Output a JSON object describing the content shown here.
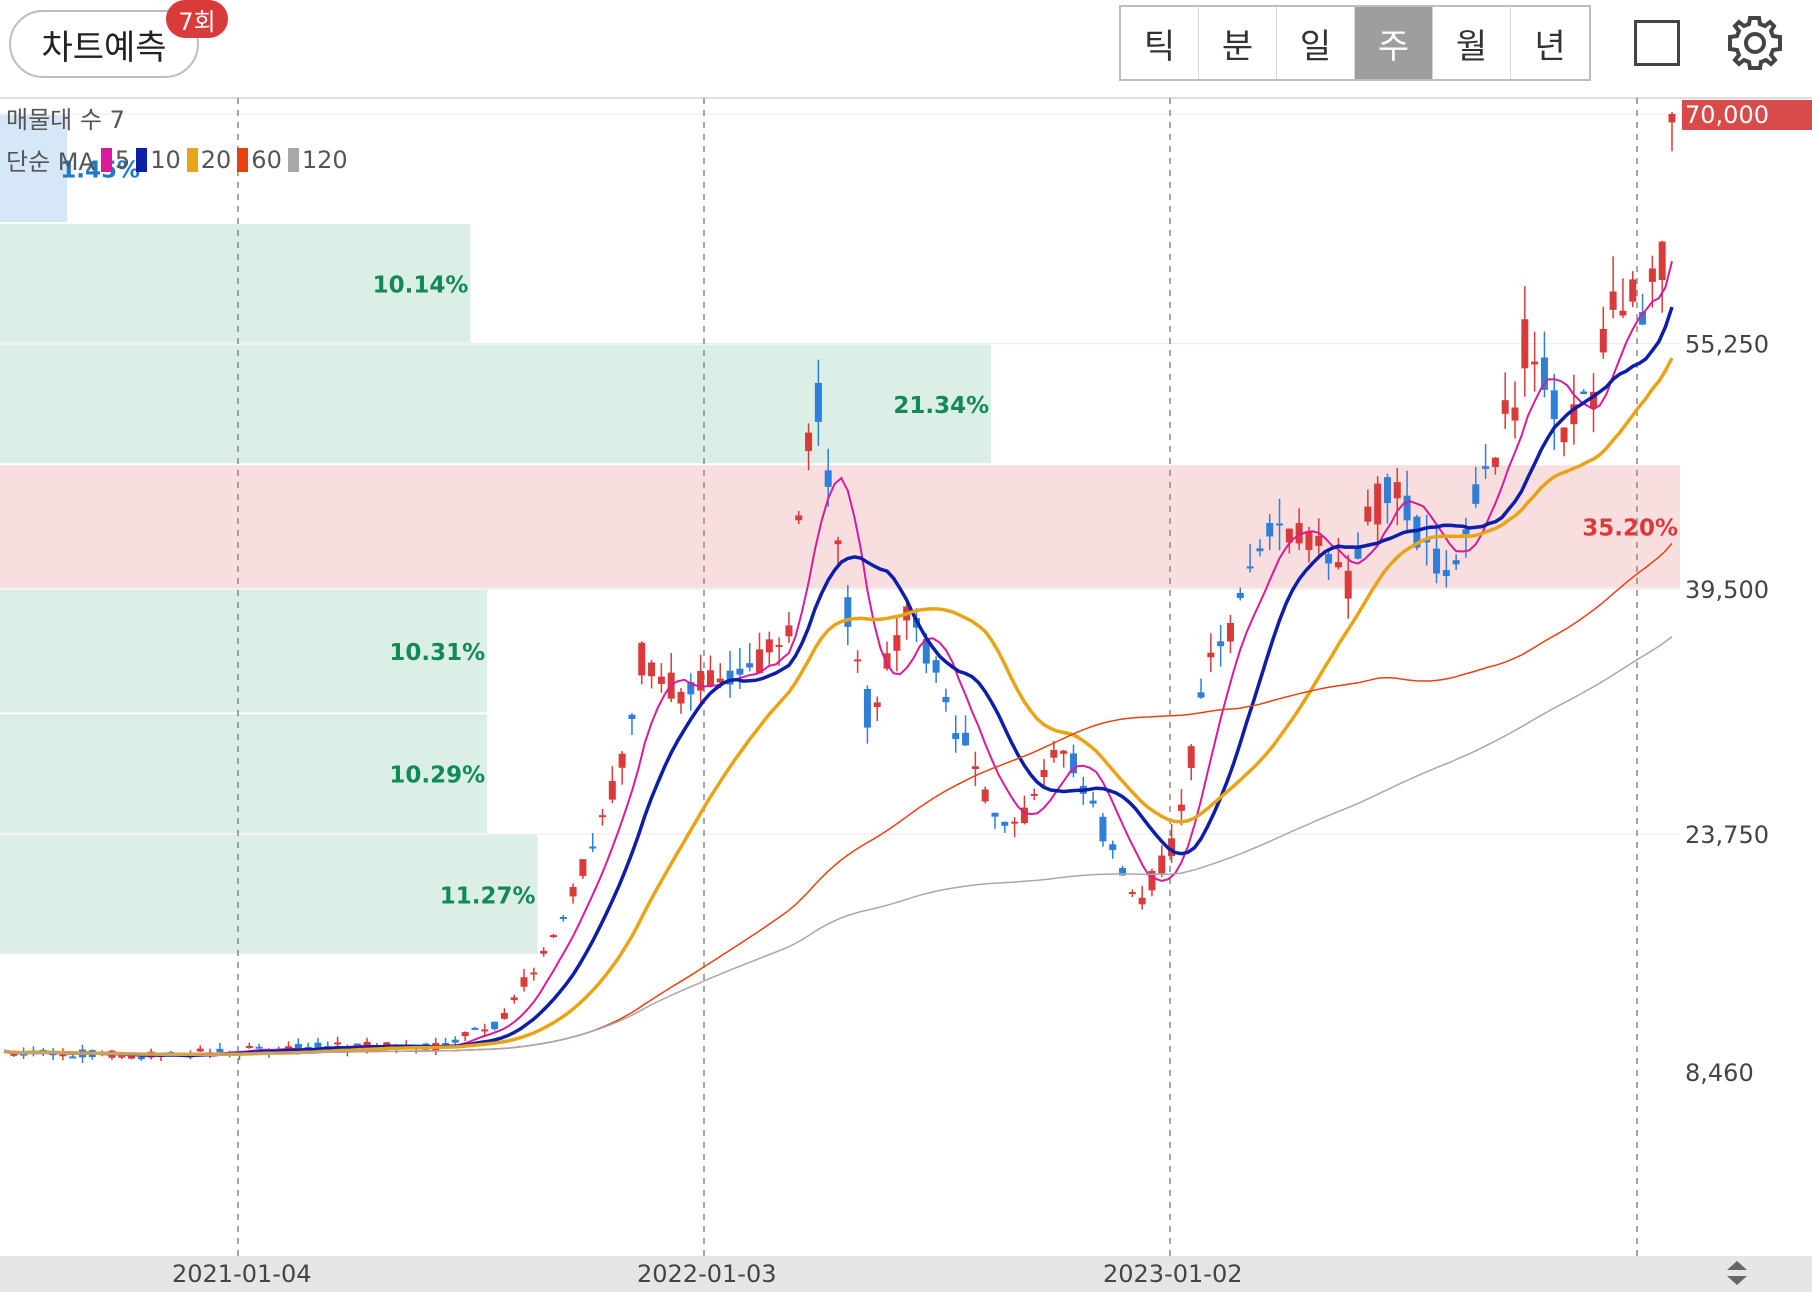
{
  "header": {
    "predict_label": "차트예측",
    "predict_badge": "7회",
    "periods": [
      "틱",
      "분",
      "일",
      "주",
      "월",
      "년"
    ],
    "active_period": "주"
  },
  "legend": {
    "volume_profile": "매물대 수 7",
    "ma_label": "단순 MA",
    "ma_periods": [
      {
        "period": "5",
        "color": "#d81b9c"
      },
      {
        "period": "10",
        "color": "#0d1ea8"
      },
      {
        "period": "20",
        "color": "#e8a317"
      },
      {
        "period": "60",
        "color": "#e8410f"
      },
      {
        "period": "120",
        "color": "#a8a8a8"
      }
    ]
  },
  "colors": {
    "up": "#d93a3a",
    "down": "#2f7fd8",
    "profile_green": "#dcefe6",
    "profile_red": "#f8dede",
    "profile_blue": "#d6e8f8"
  },
  "price_axis": {
    "labels": [
      "70,000",
      "55,250",
      "39,500",
      "23,750",
      "8,460"
    ],
    "current": "70,000"
  },
  "time_axis": {
    "labels": [
      "2021-01-04",
      "2022-01-03",
      "2023-01-02"
    ]
  },
  "volume_profile": [
    {
      "pct": "1.45%",
      "from": 63000,
      "to": 70000,
      "share": 0.04,
      "color": "blue"
    },
    {
      "pct": "10.14%",
      "from": 55250,
      "to": 63000,
      "share": 0.28,
      "color": "green"
    },
    {
      "pct": "21.34%",
      "from": 47500,
      "to": 55250,
      "share": 0.59,
      "color": "green"
    },
    {
      "pct": "35.20%",
      "from": 39500,
      "to": 47500,
      "share": 1.0,
      "color": "red"
    },
    {
      "pct": "10.31%",
      "from": 31500,
      "to": 39500,
      "share": 0.29,
      "color": "green"
    },
    {
      "pct": "10.29%",
      "from": 23750,
      "to": 31500,
      "share": 0.29,
      "color": "green"
    },
    {
      "pct": "11.27%",
      "from": 16000,
      "to": 23750,
      "share": 0.32,
      "color": "green"
    }
  ]
}
